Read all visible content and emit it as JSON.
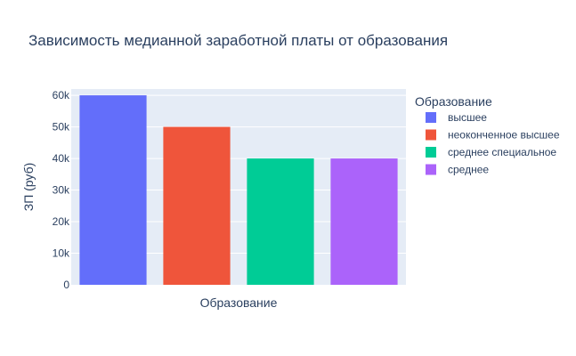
{
  "chart_data": {
    "type": "bar",
    "title": "Зависимость медианной заработной платы от образования",
    "xlabel": "Образование",
    "ylabel": "ЗП (руб)",
    "ylim": [
      0,
      62000
    ],
    "y_ticks": [
      {
        "value": 0,
        "label": "0"
      },
      {
        "value": 10000,
        "label": "10k"
      },
      {
        "value": 20000,
        "label": "20k"
      },
      {
        "value": 30000,
        "label": "30k"
      },
      {
        "value": 40000,
        "label": "40k"
      },
      {
        "value": 50000,
        "label": "50k"
      },
      {
        "value": 60000,
        "label": "60k"
      }
    ],
    "grid": true,
    "legend": {
      "title": "Образование",
      "placement": "right"
    },
    "series": [
      {
        "name": "высшее",
        "values": [
          60000
        ],
        "color": "#636efa"
      },
      {
        "name": "неоконченное высшее",
        "values": [
          50000
        ],
        "color": "#ef553b"
      },
      {
        "name": "среднее специальное",
        "values": [
          40000
        ],
        "color": "#00cc96"
      },
      {
        "name": "среднее",
        "values": [
          40000
        ],
        "color": "#ab63fa"
      }
    ],
    "colors": {
      "plot_bg": "#e5ecf6",
      "grid": "#ffffff",
      "text": "#2a3f5f"
    }
  }
}
